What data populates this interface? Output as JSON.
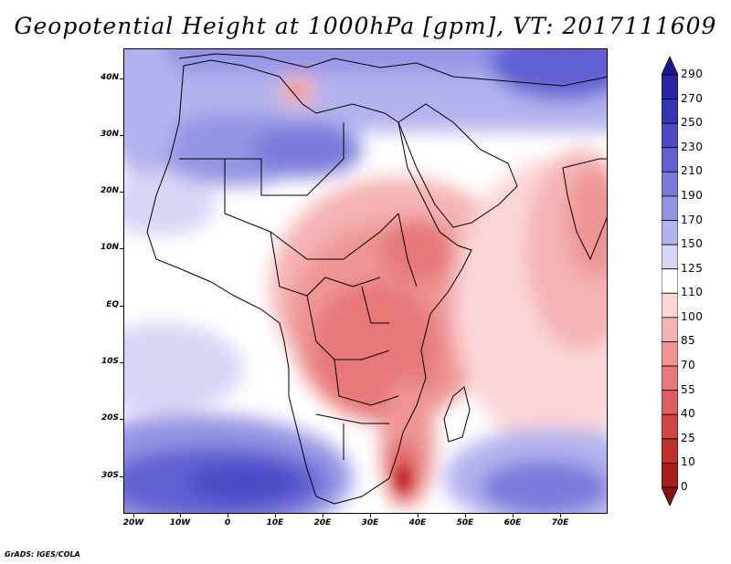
{
  "title": "Geopotential Height at 1000hPa [gpm], VT: 2017111609",
  "footer": "GrADS: IGES/COLA",
  "axes": {
    "y_ticks": [
      "40N",
      "30N",
      "20N",
      "10N",
      "EQ",
      "10S",
      "20S",
      "30S"
    ],
    "x_ticks": [
      "20W",
      "10W",
      "0",
      "10E",
      "20E",
      "30E",
      "40E",
      "50E",
      "60E",
      "70E"
    ]
  },
  "colorbar": {
    "levels": [
      "290",
      "270",
      "250",
      "230",
      "210",
      "190",
      "170",
      "150",
      "125",
      "110",
      "100",
      "85",
      "70",
      "55",
      "40",
      "25",
      "10",
      "0"
    ],
    "colors": [
      "#1a1a8c",
      "#2727a6",
      "#3535b8",
      "#4a4ac6",
      "#6060d2",
      "#7a7adc",
      "#9494e4",
      "#b2b2ee",
      "#d6d6f7",
      "#ffffff",
      "#fbd6d6",
      "#f5b2b2",
      "#ee9494",
      "#e67878",
      "#de5e5e",
      "#d34444",
      "#c22e2e",
      "#a81c1c",
      "#8a1010"
    ]
  }
}
